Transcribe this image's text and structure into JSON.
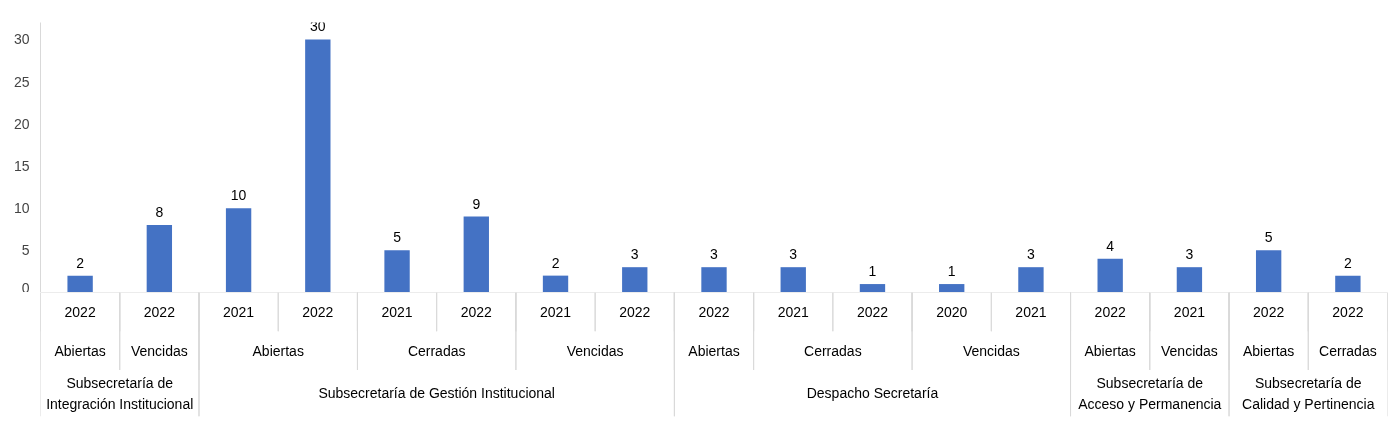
{
  "chart_data": {
    "type": "bar",
    "categories": [
      [
        "Subsecretaría de Integración Institucional",
        "Abiertas",
        "2022"
      ],
      [
        null,
        "Vencidas",
        "2022"
      ],
      [
        "Subsecretaría de Gestión Institucional",
        "Abiertas",
        "2021"
      ],
      [
        null,
        null,
        "2022"
      ],
      [
        null,
        "Cerradas",
        "2021"
      ],
      [
        null,
        null,
        "2022"
      ],
      [
        null,
        "Vencidas",
        "2021"
      ],
      [
        null,
        null,
        "2022"
      ],
      [
        "Despacho Secretaría",
        "Abiertas",
        "2022"
      ],
      [
        null,
        "Cerradas",
        "2021"
      ],
      [
        null,
        null,
        "2022"
      ],
      [
        null,
        "Vencidas",
        "2020"
      ],
      [
        null,
        null,
        "2021"
      ],
      [
        "Subsecretaría de Acceso y Permanencia",
        "Abiertas",
        "2022"
      ],
      [
        null,
        "Vencidas",
        "2021"
      ],
      [
        "Subsecretaría de Calidad y Pertinencia",
        "Abiertas",
        "2022"
      ],
      [
        null,
        "Cerradas",
        "2022"
      ]
    ],
    "values": [
      2,
      8,
      10,
      30,
      5,
      9,
      2,
      3,
      3,
      3,
      1,
      1,
      3,
      4,
      3,
      5,
      2
    ],
    "color": "#4472c4",
    "ylim": [
      0,
      32
    ],
    "yticks": [
      0,
      5,
      10,
      15,
      20,
      25,
      30
    ],
    "grid": false,
    "data_labels": true
  }
}
